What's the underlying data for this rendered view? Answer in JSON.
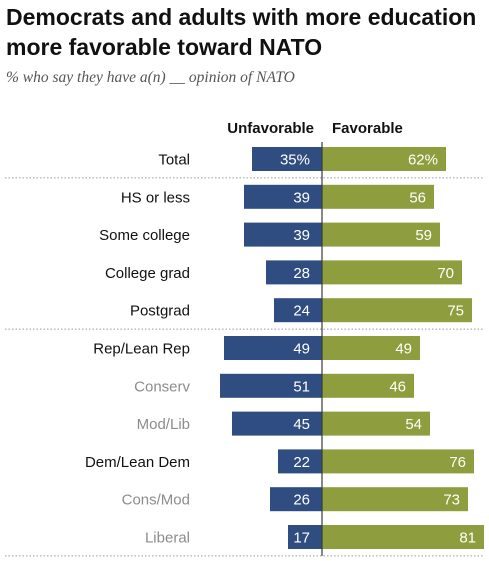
{
  "title": "Democrats and adults with more education more favorable toward NATO",
  "subtitle": "% who say they have a(n) __ opinion of NATO",
  "colors": {
    "unfavorable": "#2f4d80",
    "favorable": "#8e9d3d",
    "label_primary": "#111111",
    "label_sub": "#8c8c8c",
    "divider": "#9a9a9a"
  },
  "chart_data": {
    "type": "bar",
    "orientation": "horizontal-diverging",
    "series": [
      {
        "name": "Unfavorable",
        "values": [
          35,
          39,
          39,
          28,
          24,
          49,
          51,
          45,
          22,
          26,
          17
        ]
      },
      {
        "name": "Favorable",
        "values": [
          62,
          56,
          59,
          70,
          75,
          49,
          46,
          54,
          76,
          73,
          81
        ]
      }
    ],
    "categories": [
      "Total",
      "HS or less",
      "Some college",
      "College grad",
      "Postgrad",
      "Rep/Lean Rep",
      "Conserv",
      "Mod/Lib",
      "Dem/Lean Dem",
      "Cons/Mod",
      "Liberal"
    ],
    "value_labels": {
      "unfavorable": [
        "35%",
        "39",
        "39",
        "28",
        "24",
        "49",
        "51",
        "45",
        "22",
        "26",
        "17"
      ],
      "favorable": [
        "62%",
        "56",
        "59",
        "70",
        "75",
        "49",
        "46",
        "54",
        "76",
        "73",
        "81"
      ]
    },
    "subgroup": [
      false,
      false,
      false,
      false,
      false,
      false,
      true,
      true,
      false,
      true,
      true
    ],
    "groups": [
      [
        0
      ],
      [
        1,
        2,
        3,
        4
      ],
      [
        5,
        6,
        7,
        8,
        9,
        10
      ]
    ],
    "grid": false,
    "legend": "top-center"
  }
}
